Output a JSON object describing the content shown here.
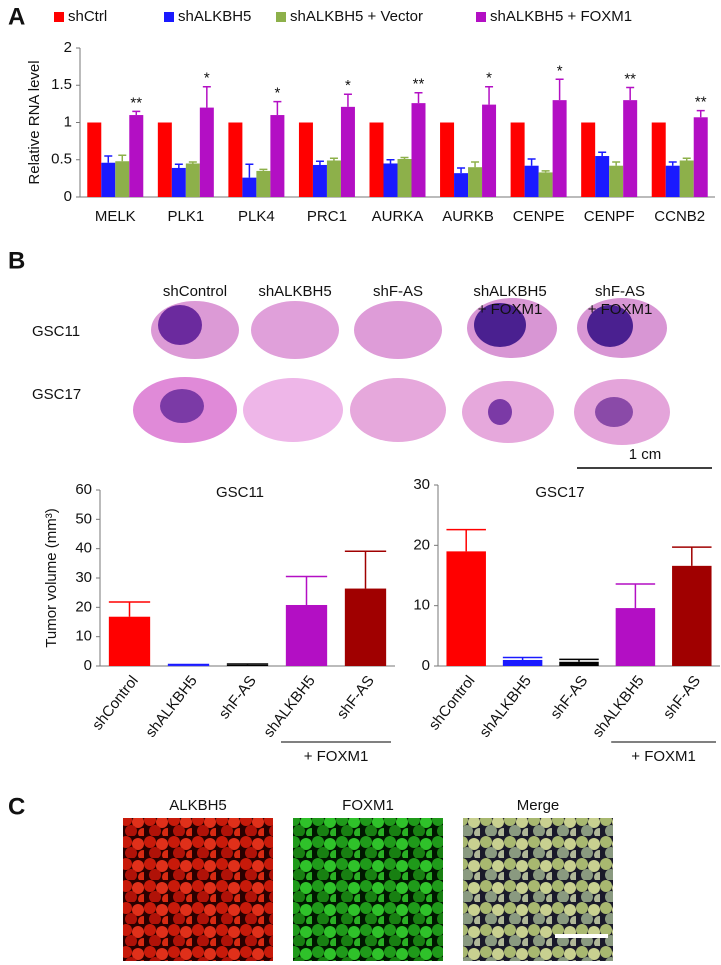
{
  "panels": [
    "A",
    "B",
    "C"
  ],
  "chart_data": [
    {
      "type": "bar",
      "ylabel": "Relative RNA level",
      "categories": [
        "MELK",
        "PLK1",
        "PLK4",
        "PRC1",
        "AURKA",
        "AURKB",
        "CENPE",
        "CENPF",
        "CCNB2"
      ],
      "series": [
        {
          "name": "shCtrl",
          "color": "#ff0000",
          "values": [
            1,
            1,
            1,
            1,
            1,
            1,
            1,
            1,
            1
          ]
        },
        {
          "name": "shALKBH5",
          "color": "#1a1aff",
          "values": [
            0.46,
            0.39,
            0.26,
            0.43,
            0.45,
            0.32,
            0.42,
            0.55,
            0.42
          ],
          "errors": [
            0.09,
            0.05,
            0.18,
            0.05,
            0.05,
            0.07,
            0.09,
            0.05,
            0.05
          ]
        },
        {
          "name": "shALKBH5 + Vector",
          "color": "#8db04a",
          "values": [
            0.48,
            0.45,
            0.35,
            0.49,
            0.51,
            0.4,
            0.33,
            0.42,
            0.49
          ],
          "errors": [
            0.08,
            0.02,
            0.02,
            0.03,
            0.02,
            0.07,
            0.02,
            0.05,
            0.03
          ]
        },
        {
          "name": "shALKBH5 + FOXM1",
          "color": "#b30fc4",
          "values": [
            1.1,
            1.2,
            1.1,
            1.21,
            1.26,
            1.24,
            1.3,
            1.3,
            1.07
          ],
          "errors": [
            0.05,
            0.28,
            0.18,
            0.17,
            0.14,
            0.24,
            0.28,
            0.17,
            0.09
          ],
          "annotations": [
            "**",
            "*",
            "*",
            "*",
            "**",
            "*",
            "*",
            "**",
            "**"
          ]
        }
      ],
      "ylim": [
        0,
        2
      ],
      "yticks": [
        0,
        0.5,
        1,
        1.5,
        2
      ],
      "grid": false
    },
    {
      "type": "bar",
      "title": "GSC11",
      "ylabel": "Tumor volume (mm³)",
      "categories": [
        "shControl",
        "shALKBH5",
        "shF-AS",
        "shALKBH5",
        "shF-AS"
      ],
      "values": [
        16.8,
        0.3,
        0.4,
        20.8,
        26.4
      ],
      "errors": [
        5,
        0.2,
        0.3,
        9.7,
        12.7
      ],
      "colors": [
        "#ff0000",
        "#1a1aff",
        "#000000",
        "#b30fc4",
        "#a00000"
      ],
      "group_label": "+ FOXM1",
      "ylim": [
        0,
        60
      ],
      "yticks": [
        0,
        10,
        20,
        30,
        40,
        50,
        60
      ],
      "grid": false
    },
    {
      "type": "bar",
      "title": "GSC17",
      "categories": [
        "shControl",
        "shALKBH5",
        "shF-AS",
        "shALKBH5",
        "shF-AS"
      ],
      "values": [
        19.0,
        1.0,
        0.7,
        9.6,
        16.6
      ],
      "errors": [
        3.6,
        0.4,
        0.4,
        4.0,
        3.1
      ],
      "colors": [
        "#ff0000",
        "#1a1aff",
        "#000000",
        "#b30fc4",
        "#a00000"
      ],
      "group_label": "+ FOXM1",
      "ylim": [
        0,
        30
      ],
      "yticks": [
        0,
        10,
        20,
        30
      ],
      "grid": false
    }
  ],
  "brain_sections": {
    "columns": [
      [
        "shControl"
      ],
      [
        "shALKBH5"
      ],
      [
        "shF-AS"
      ],
      [
        "shALKBH5",
        "+ FOXM1"
      ],
      [
        "shF-AS",
        "+ FOXM1"
      ]
    ],
    "rows": [
      "GSC11",
      "GSC17"
    ],
    "scale_bar": "1 cm"
  },
  "staining": {
    "titles": [
      "ALKBH5",
      "FOXM1",
      "Merge"
    ]
  }
}
